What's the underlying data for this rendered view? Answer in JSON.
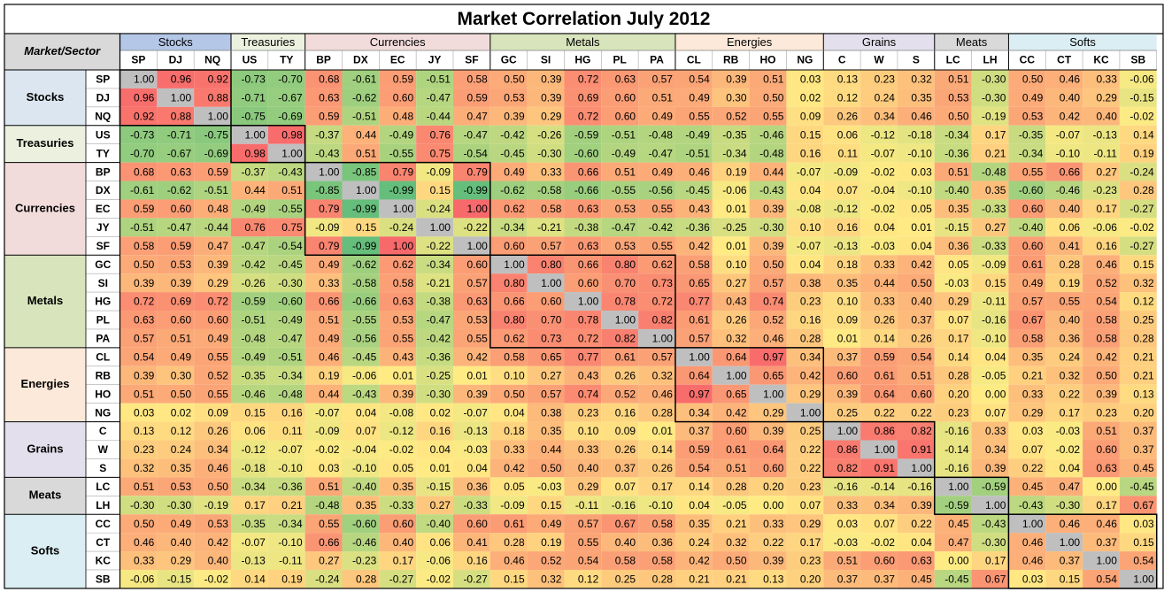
{
  "chart_data": {
    "type": "heatmap",
    "title": "Market Correlation July 2012",
    "corner_label": "Market/Sector",
    "scale_min": -1,
    "scale_max": 1,
    "diagonal_color": "#BFBFBF",
    "low_color": "#63BE7B",
    "mid_color": "#FFEB84",
    "high_color": "#F8696B",
    "sectors": [
      {
        "name": "Stocks",
        "markets": [
          "SP",
          "DJ",
          "NQ"
        ],
        "header_color": "#B4C7E7",
        "label_color": "#DCE6F1"
      },
      {
        "name": "Treasuries",
        "markets": [
          "US",
          "TY"
        ],
        "header_color": "#EBF1DE",
        "label_color": "#EBF1DE"
      },
      {
        "name": "Currencies",
        "markets": [
          "BP",
          "DX",
          "EC",
          "JY",
          "SF"
        ],
        "header_color": "#F2DCDB",
        "label_color": "#F2DCDB"
      },
      {
        "name": "Metals",
        "markets": [
          "GC",
          "SI",
          "HG",
          "PL",
          "PA"
        ],
        "header_color": "#D8E4BC",
        "label_color": "#D8E4BC"
      },
      {
        "name": "Energies",
        "markets": [
          "CL",
          "RB",
          "HO",
          "NG"
        ],
        "header_color": "#FDE9D9",
        "label_color": "#FDE9D9"
      },
      {
        "name": "Grains",
        "markets": [
          "C",
          "W",
          "S"
        ],
        "header_color": "#E4DFEC",
        "label_color": "#E4DFEC"
      },
      {
        "name": "Meats",
        "markets": [
          "LC",
          "LH"
        ],
        "header_color": "#D9D9D9",
        "label_color": "#D9D9D9"
      },
      {
        "name": "Softs",
        "markets": [
          "CC",
          "CT",
          "KC",
          "SB"
        ],
        "header_color": "#DAEEF3",
        "label_color": "#DAEEF3"
      }
    ],
    "markets": [
      "SP",
      "DJ",
      "NQ",
      "US",
      "TY",
      "BP",
      "DX",
      "EC",
      "JY",
      "SF",
      "GC",
      "SI",
      "HG",
      "PL",
      "PA",
      "CL",
      "RB",
      "HO",
      "NG",
      "C",
      "W",
      "S",
      "LC",
      "LH",
      "CC",
      "CT",
      "KC",
      "SB"
    ],
    "values": [
      [
        "1.00",
        "0.96",
        "0.92",
        "-0.73",
        "-0.70",
        "0.68",
        "-0.61",
        "0.59",
        "-0.51",
        "0.58",
        "0.50",
        "0.39",
        "0.72",
        "0.63",
        "0.57",
        "0.54",
        "0.39",
        "0.51",
        "0.03",
        "0.13",
        "0.23",
        "0.32",
        "0.51",
        "-0.30",
        "0.50",
        "0.46",
        "0.33",
        "-0.06"
      ],
      [
        "0.96",
        "1.00",
        "0.88",
        "-0.71",
        "-0.67",
        "0.63",
        "-0.62",
        "0.60",
        "-0.47",
        "0.59",
        "0.53",
        "0.39",
        "0.69",
        "0.60",
        "0.51",
        "0.49",
        "0.30",
        "0.50",
        "0.02",
        "0.12",
        "0.24",
        "0.35",
        "0.53",
        "-0.30",
        "0.49",
        "0.40",
        "0.29",
        "-0.15"
      ],
      [
        "0.92",
        "0.88",
        "1.00",
        "-0.75",
        "-0.69",
        "0.59",
        "-0.51",
        "0.48",
        "-0.44",
        "0.47",
        "0.39",
        "0.29",
        "0.72",
        "0.60",
        "0.49",
        "0.55",
        "0.52",
        "0.55",
        "0.09",
        "0.26",
        "0.34",
        "0.46",
        "0.50",
        "-0.19",
        "0.53",
        "0.42",
        "0.40",
        "-0.02"
      ],
      [
        "-0.73",
        "-0.71",
        "-0.75",
        "1.00",
        "0.98",
        "-0.37",
        "0.44",
        "-0.49",
        "0.76",
        "-0.47",
        "-0.42",
        "-0.26",
        "-0.59",
        "-0.51",
        "-0.48",
        "-0.49",
        "-0.35",
        "-0.46",
        "0.15",
        "0.06",
        "-0.12",
        "-0.18",
        "-0.34",
        "0.17",
        "-0.35",
        "-0.07",
        "-0.13",
        "0.14"
      ],
      [
        "-0.70",
        "-0.67",
        "-0.69",
        "0.98",
        "1.00",
        "-0.43",
        "0.51",
        "-0.55",
        "0.75",
        "-0.54",
        "-0.45",
        "-0.30",
        "-0.60",
        "-0.49",
        "-0.47",
        "-0.51",
        "-0.34",
        "-0.48",
        "0.16",
        "0.11",
        "-0.07",
        "-0.10",
        "-0.36",
        "0.21",
        "-0.34",
        "-0.10",
        "-0.11",
        "0.19"
      ],
      [
        "0.68",
        "0.63",
        "0.59",
        "-0.37",
        "-0.43",
        "1.00",
        "-0.85",
        "0.79",
        "-0.09",
        "0.79",
        "0.49",
        "0.33",
        "0.66",
        "0.51",
        "0.49",
        "0.46",
        "0.19",
        "0.44",
        "-0.07",
        "-0.09",
        "-0.02",
        "0.03",
        "0.51",
        "-0.48",
        "0.55",
        "0.66",
        "0.27",
        "-0.24"
      ],
      [
        "-0.61",
        "-0.62",
        "-0.51",
        "0.44",
        "0.51",
        "-0.85",
        "1.00",
        "-0.99",
        "0.15",
        "-0.99",
        "-0.62",
        "-0.58",
        "-0.66",
        "-0.55",
        "-0.56",
        "-0.45",
        "-0.06",
        "-0.43",
        "0.04",
        "0.07",
        "-0.04",
        "-0.10",
        "-0.40",
        "0.35",
        "-0.60",
        "-0.46",
        "-0.23",
        "0.28"
      ],
      [
        "0.59",
        "0.60",
        "0.48",
        "-0.49",
        "-0.55",
        "0.79",
        "-0.99",
        "1.00",
        "-0.24",
        "1.00",
        "0.62",
        "0.58",
        "0.63",
        "0.53",
        "0.55",
        "0.43",
        "0.01",
        "0.39",
        "-0.08",
        "-0.12",
        "-0.02",
        "0.05",
        "0.35",
        "-0.33",
        "0.60",
        "0.40",
        "0.17",
        "-0.27"
      ],
      [
        "-0.51",
        "-0.47",
        "-0.44",
        "0.76",
        "0.75",
        "-0.09",
        "0.15",
        "-0.24",
        "1.00",
        "-0.22",
        "-0.34",
        "-0.21",
        "-0.38",
        "-0.47",
        "-0.42",
        "-0.36",
        "-0.25",
        "-0.30",
        "0.10",
        "0.16",
        "0.04",
        "0.01",
        "-0.15",
        "0.27",
        "-0.40",
        "0.06",
        "-0.06",
        "-0.02"
      ],
      [
        "0.58",
        "0.59",
        "0.47",
        "-0.47",
        "-0.54",
        "0.79",
        "-0.99",
        "1.00",
        "-0.22",
        "1.00",
        "0.60",
        "0.57",
        "0.63",
        "0.53",
        "0.55",
        "0.42",
        "0.01",
        "0.39",
        "-0.07",
        "-0.13",
        "-0.03",
        "0.04",
        "0.36",
        "-0.33",
        "0.60",
        "0.41",
        "0.16",
        "-0.27"
      ],
      [
        "0.50",
        "0.53",
        "0.39",
        "-0.42",
        "-0.45",
        "0.49",
        "-0.62",
        "0.62",
        "-0.34",
        "0.60",
        "1.00",
        "0.80",
        "0.66",
        "0.80",
        "0.62",
        "0.58",
        "0.10",
        "0.50",
        "0.04",
        "0.18",
        "0.33",
        "0.42",
        "0.05",
        "-0.09",
        "0.61",
        "0.28",
        "0.46",
        "0.15"
      ],
      [
        "0.39",
        "0.39",
        "0.29",
        "-0.26",
        "-0.30",
        "0.33",
        "-0.58",
        "0.58",
        "-0.21",
        "0.57",
        "0.80",
        "1.00",
        "0.60",
        "0.70",
        "0.73",
        "0.65",
        "0.27",
        "0.57",
        "0.38",
        "0.35",
        "0.44",
        "0.50",
        "-0.03",
        "0.15",
        "0.49",
        "0.19",
        "0.52",
        "0.32"
      ],
      [
        "0.72",
        "0.69",
        "0.72",
        "-0.59",
        "-0.60",
        "0.66",
        "-0.66",
        "0.63",
        "-0.38",
        "0.63",
        "0.66",
        "0.60",
        "1.00",
        "0.78",
        "0.72",
        "0.77",
        "0.43",
        "0.74",
        "0.23",
        "0.10",
        "0.33",
        "0.40",
        "0.29",
        "-0.11",
        "0.57",
        "0.55",
        "0.54",
        "0.12"
      ],
      [
        "0.63",
        "0.60",
        "0.60",
        "-0.51",
        "-0.49",
        "0.51",
        "-0.55",
        "0.53",
        "-0.47",
        "0.53",
        "0.80",
        "0.70",
        "0.78",
        "1.00",
        "0.82",
        "0.61",
        "0.26",
        "0.52",
        "0.16",
        "0.09",
        "0.26",
        "0.37",
        "0.07",
        "-0.16",
        "0.67",
        "0.40",
        "0.58",
        "0.25"
      ],
      [
        "0.57",
        "0.51",
        "0.49",
        "-0.48",
        "-0.47",
        "0.49",
        "-0.56",
        "0.55",
        "-0.42",
        "0.55",
        "0.62",
        "0.73",
        "0.72",
        "0.82",
        "1.00",
        "0.57",
        "0.32",
        "0.46",
        "0.28",
        "0.01",
        "0.14",
        "0.26",
        "0.17",
        "-0.10",
        "0.58",
        "0.36",
        "0.58",
        "0.28"
      ],
      [
        "0.54",
        "0.49",
        "0.55",
        "-0.49",
        "-0.51",
        "0.46",
        "-0.45",
        "0.43",
        "-0.36",
        "0.42",
        "0.58",
        "0.65",
        "0.77",
        "0.61",
        "0.57",
        "1.00",
        "0.64",
        "0.97",
        "0.34",
        "0.37",
        "0.59",
        "0.54",
        "0.14",
        "0.04",
        "0.35",
        "0.24",
        "0.42",
        "0.21"
      ],
      [
        "0.39",
        "0.30",
        "0.52",
        "-0.35",
        "-0.34",
        "0.19",
        "-0.06",
        "0.01",
        "-0.25",
        "0.01",
        "0.10",
        "0.27",
        "0.43",
        "0.26",
        "0.32",
        "0.64",
        "1.00",
        "0.65",
        "0.42",
        "0.60",
        "0.61",
        "0.51",
        "0.28",
        "-0.05",
        "0.21",
        "0.32",
        "0.50",
        "0.21"
      ],
      [
        "0.51",
        "0.50",
        "0.55",
        "-0.46",
        "-0.48",
        "0.44",
        "-0.43",
        "0.39",
        "-0.30",
        "0.39",
        "0.50",
        "0.57",
        "0.74",
        "0.52",
        "0.46",
        "0.97",
        "0.65",
        "1.00",
        "0.29",
        "0.39",
        "0.64",
        "0.60",
        "0.20",
        "0.00",
        "0.33",
        "0.22",
        "0.39",
        "0.13"
      ],
      [
        "0.03",
        "0.02",
        "0.09",
        "0.15",
        "0.16",
        "-0.07",
        "0.04",
        "-0.08",
        "0.02",
        "-0.07",
        "0.04",
        "0.38",
        "0.23",
        "0.16",
        "0.28",
        "0.34",
        "0.42",
        "0.29",
        "1.00",
        "0.25",
        "0.22",
        "0.22",
        "0.23",
        "0.07",
        "0.29",
        "0.17",
        "0.23",
        "0.20"
      ],
      [
        "0.13",
        "0.12",
        "0.26",
        "0.06",
        "0.11",
        "-0.09",
        "0.07",
        "-0.12",
        "0.16",
        "-0.13",
        "0.18",
        "0.35",
        "0.10",
        "0.09",
        "0.01",
        "0.37",
        "0.60",
        "0.39",
        "0.25",
        "1.00",
        "0.86",
        "0.82",
        "-0.16",
        "0.33",
        "0.03",
        "-0.03",
        "0.51",
        "0.37"
      ],
      [
        "0.23",
        "0.24",
        "0.34",
        "-0.12",
        "-0.07",
        "-0.02",
        "-0.04",
        "-0.02",
        "0.04",
        "-0.03",
        "0.33",
        "0.44",
        "0.33",
        "0.26",
        "0.14",
        "0.59",
        "0.61",
        "0.64",
        "0.22",
        "0.86",
        "1.00",
        "0.91",
        "-0.14",
        "0.34",
        "0.07",
        "-0.02",
        "0.60",
        "0.37"
      ],
      [
        "0.32",
        "0.35",
        "0.46",
        "-0.18",
        "-0.10",
        "0.03",
        "-0.10",
        "0.05",
        "0.01",
        "0.04",
        "0.42",
        "0.50",
        "0.40",
        "0.37",
        "0.26",
        "0.54",
        "0.51",
        "0.60",
        "0.22",
        "0.82",
        "0.91",
        "1.00",
        "-0.16",
        "0.39",
        "0.22",
        "0.04",
        "0.63",
        "0.45"
      ],
      [
        "0.51",
        "0.53",
        "0.50",
        "-0.34",
        "-0.36",
        "0.51",
        "-0.40",
        "0.35",
        "-0.15",
        "0.36",
        "0.05",
        "-0.03",
        "0.29",
        "0.07",
        "0.17",
        "0.14",
        "0.28",
        "0.20",
        "0.23",
        "-0.16",
        "-0.14",
        "-0.16",
        "1.00",
        "-0.59",
        "0.45",
        "0.47",
        "0.00",
        "-0.45"
      ],
      [
        "-0.30",
        "-0.30",
        "-0.19",
        "0.17",
        "0.21",
        "-0.48",
        "0.35",
        "-0.33",
        "0.27",
        "-0.33",
        "-0.09",
        "0.15",
        "-0.11",
        "-0.16",
        "-0.10",
        "0.04",
        "-0.05",
        "0.00",
        "0.07",
        "0.33",
        "0.34",
        "0.39",
        "-0.59",
        "1.00",
        "-0.43",
        "-0.30",
        "0.17",
        "0.67"
      ],
      [
        "0.50",
        "0.49",
        "0.53",
        "-0.35",
        "-0.34",
        "0.55",
        "-0.60",
        "0.60",
        "-0.40",
        "0.60",
        "0.61",
        "0.49",
        "0.57",
        "0.67",
        "0.58",
        "0.35",
        "0.21",
        "0.33",
        "0.29",
        "0.03",
        "0.07",
        "0.22",
        "0.45",
        "-0.43",
        "1.00",
        "0.46",
        "0.46",
        "0.03"
      ],
      [
        "0.46",
        "0.40",
        "0.42",
        "-0.07",
        "-0.10",
        "0.66",
        "-0.46",
        "0.40",
        "0.06",
        "0.41",
        "0.28",
        "0.19",
        "0.55",
        "0.40",
        "0.36",
        "0.24",
        "0.32",
        "0.22",
        "0.17",
        "-0.03",
        "-0.02",
        "0.04",
        "0.47",
        "-0.30",
        "0.46",
        "1.00",
        "0.37",
        "0.15"
      ],
      [
        "0.33",
        "0.29",
        "0.40",
        "-0.13",
        "-0.11",
        "0.27",
        "-0.23",
        "0.17",
        "-0.06",
        "0.16",
        "0.46",
        "0.52",
        "0.54",
        "0.58",
        "0.58",
        "0.42",
        "0.50",
        "0.39",
        "0.23",
        "0.51",
        "0.60",
        "0.63",
        "0.00",
        "0.17",
        "0.46",
        "0.37",
        "1.00",
        "0.54"
      ],
      [
        "-0.06",
        "-0.15",
        "-0.02",
        "0.14",
        "0.19",
        "-0.24",
        "0.28",
        "-0.27",
        "-0.02",
        "-0.27",
        "0.15",
        "0.32",
        "0.12",
        "0.25",
        "0.28",
        "0.21",
        "0.21",
        "0.13",
        "0.20",
        "0.37",
        "0.37",
        "0.45",
        "-0.45",
        "0.67",
        "0.03",
        "0.15",
        "0.54",
        "1.00"
      ]
    ]
  }
}
